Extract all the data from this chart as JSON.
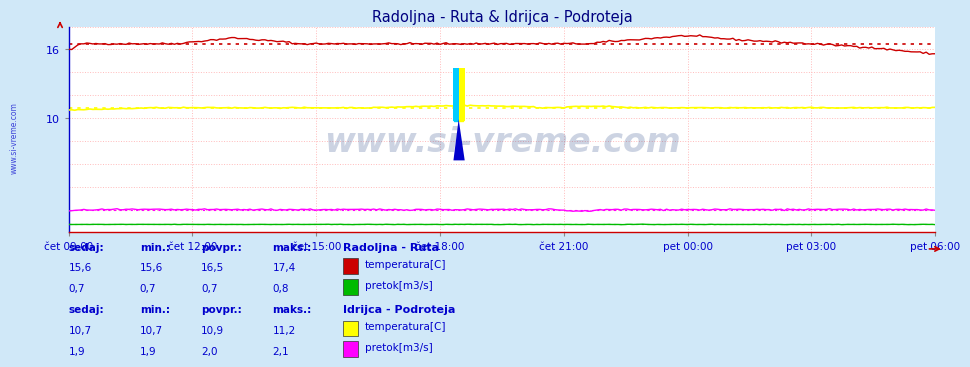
{
  "title": "Radoljna - Ruta & Idrijca - Podroteja",
  "title_color": "#000080",
  "bg_color": "#d0e8f8",
  "plot_bg_color": "#ffffff",
  "grid_color": "#ffbbbb",
  "x_ticks": [
    "čet 09:00",
    "čet 12:00",
    "čet 15:00",
    "čet 18:00",
    "čet 21:00",
    "pet 00:00",
    "pet 03:00",
    "pet 06:00"
  ],
  "x_tick_fracs": [
    0.0,
    0.1428,
    0.2857,
    0.4285,
    0.5714,
    0.7142,
    0.8571,
    1.0
  ],
  "ylim": [
    0,
    18
  ],
  "ytick_vals": [
    10,
    16
  ],
  "n_points": 288,
  "radoljna_temp_avg": 16.5,
  "radoljna_temp_min": 15.6,
  "radoljna_temp_max": 17.4,
  "radoljna_temp_current": 15.6,
  "radoljna_flow_avg": 0.7,
  "radoljna_flow_min": 0.7,
  "radoljna_flow_max": 0.8,
  "radoljna_flow_current": 0.7,
  "idrijca_temp_avg": 10.9,
  "idrijca_temp_min": 10.7,
  "idrijca_temp_max": 11.2,
  "idrijca_temp_current": 10.7,
  "idrijca_flow_avg": 2.0,
  "idrijca_flow_min": 1.9,
  "idrijca_flow_max": 2.1,
  "idrijca_flow_current": 1.9,
  "color_rad_temp": "#cc0000",
  "color_rad_flow": "#00bb00",
  "color_idr_temp": "#ffff00",
  "color_idr_flow": "#ff00ff",
  "watermark": "www.si-vreme.com",
  "watermark_color": "#1a3a7e",
  "watermark_alpha": 0.22,
  "label_color": "#0000cc",
  "side_label": "www.si-vreme.com",
  "table_headers": [
    "sedaj:",
    "min.:",
    "povpr.:",
    "maks.:"
  ],
  "rad_label": "Radoljna - Ruta",
  "idr_label": "Idrijca - Podroteja",
  "temp_label": "temperatura[C]",
  "flow_label": "pretok[m3/s]",
  "logo_cyan": "#00ccff",
  "logo_yellow": "#ffff00",
  "logo_blue": "#0000cc"
}
